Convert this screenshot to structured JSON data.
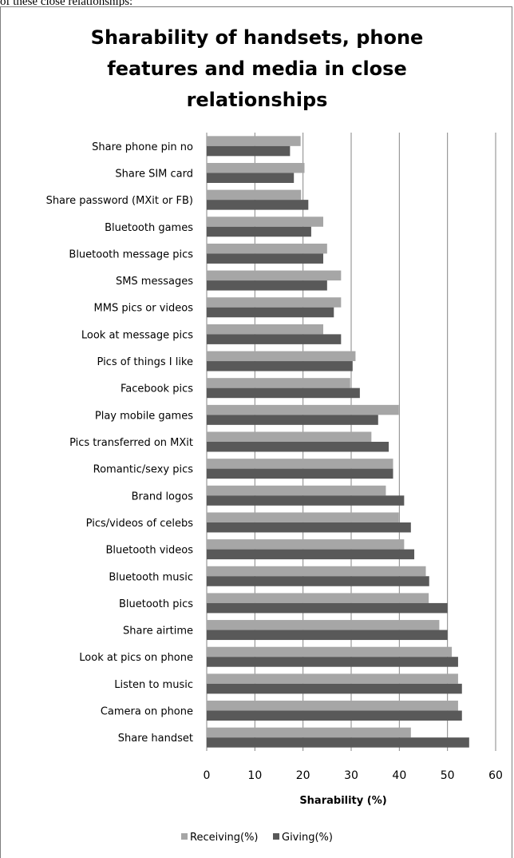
{
  "top_text": "of these close relationships:",
  "colors": {
    "receiving": "#a6a6a6",
    "giving": "#595959",
    "grid": "#868686"
  },
  "chart_data": {
    "type": "bar",
    "orientation": "horizontal",
    "title_lines": [
      "Sharability of handsets, phone",
      "features and media in close",
      "relationships"
    ],
    "xlabel": "Sharability (%)",
    "ylabel": "",
    "xlim": [
      0,
      60
    ],
    "xticks": [
      "0",
      "10",
      "20",
      "30",
      "40",
      "50",
      "60"
    ],
    "grid": true,
    "legend_position": "bottom",
    "categories": [
      "Share phone pin no",
      "Share SIM card",
      "Share password (MXit or FB)",
      "Bluetooth  games",
      "Bluetooth message pics",
      "SMS messages",
      "MMS pics or videos",
      "Look at message pics",
      "Pics of things I like",
      "Facebook pics",
      "Play mobile games",
      "Pics transferred on MXit",
      "Romantic/sexy pics",
      "Brand logos",
      "Pics/videos of celebs",
      "Bluetooth videos",
      "Bluetooth music",
      "Bluetooth pics",
      "Share airtime",
      "Look at pics on phone",
      "Listen to music",
      "Camera on phone",
      "Share handset"
    ],
    "series": [
      {
        "name": "Receiving(%)",
        "values": [
          19.5,
          20.3,
          19.6,
          24.2,
          25.0,
          27.9,
          27.9,
          24.2,
          30.9,
          29.8,
          39.9,
          34.2,
          38.7,
          37.2,
          39.9,
          41.0,
          45.5,
          46.1,
          48.3,
          50.9,
          52.2,
          52.2,
          42.4
        ]
      },
      {
        "name": "Giving(%)",
        "values": [
          17.3,
          18.1,
          21.1,
          21.7,
          24.2,
          25.0,
          26.4,
          27.9,
          30.3,
          31.8,
          35.6,
          37.8,
          38.7,
          41.0,
          42.4,
          43.1,
          46.2,
          50.0,
          50.0,
          52.2,
          53.0,
          53.0,
          54.5
        ]
      }
    ]
  }
}
